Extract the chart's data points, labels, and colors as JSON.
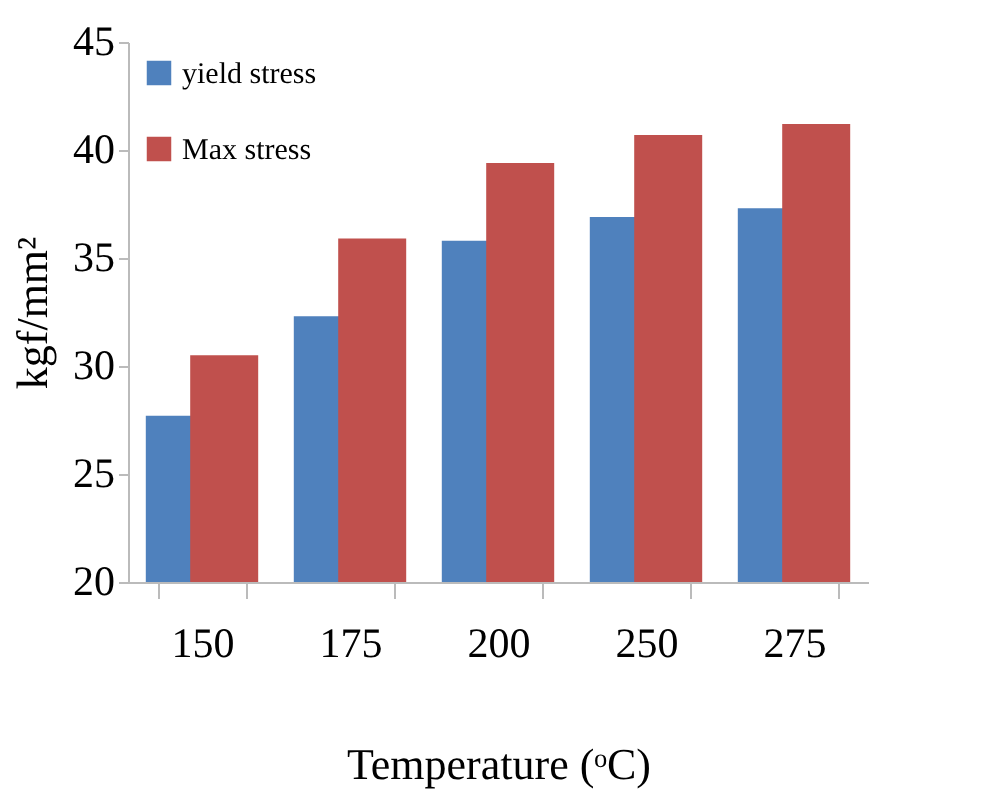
{
  "chart_data": {
    "type": "bar",
    "xlabel": "Temperature (ᵒC)",
    "ylabel": "kgf/mm²",
    "categories": [
      "150",
      "175",
      "200",
      "250",
      "275"
    ],
    "series": [
      {
        "name": "yield stress",
        "color": "#4f81bd",
        "values": [
          27.7,
          32.3,
          35.8,
          36.9,
          37.3
        ]
      },
      {
        "name": "Max stress",
        "color": "#c0504d",
        "values": [
          30.5,
          35.9,
          39.4,
          40.7,
          41.2
        ]
      }
    ],
    "ylim": [
      20,
      45
    ],
    "yticks": [
      20,
      25,
      30,
      35,
      40,
      45
    ],
    "grid": false,
    "legend": "top left"
  }
}
